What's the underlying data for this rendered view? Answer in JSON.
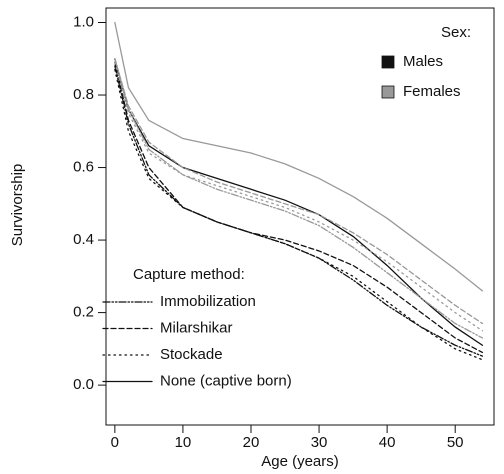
{
  "chart_data": {
    "type": "line",
    "xlabel": "Age (years)",
    "ylabel": "Survivorship",
    "x": [
      0,
      2,
      5,
      10,
      15,
      20,
      25,
      30,
      35,
      40,
      45,
      50,
      54
    ],
    "xlim": [
      -1.3,
      55.7
    ],
    "ylim": [
      -0.11,
      1.04
    ],
    "xticks": [
      0,
      10,
      20,
      30,
      40,
      50
    ],
    "yticks": [
      {
        "value": 0,
        "label": "0.0"
      },
      {
        "value": 0.2,
        "label": "0.2"
      },
      {
        "value": 0.4,
        "label": "0.4"
      },
      {
        "value": 0.6,
        "label": "0.6"
      },
      {
        "value": 0.8,
        "label": "0.8"
      },
      {
        "value": 1,
        "label": "1.0"
      }
    ],
    "sex_legend": {
      "title": "Sex:",
      "items": [
        {
          "label": "Males",
          "color": "#111111"
        },
        {
          "label": "Females",
          "color": "#999999"
        }
      ]
    },
    "method_legend": {
      "title": "Capture method:",
      "items": [
        {
          "label": "Immobilization",
          "dash": "7 2 1.5 2 1.5 2"
        },
        {
          "label": "Milarshikar",
          "dash": "5 3"
        },
        {
          "label": "Stockade",
          "dash": "1.5 4"
        },
        {
          "label": "None (captive born)",
          "dash": "none"
        }
      ]
    },
    "series": [
      {
        "sex": "Males",
        "method": "Immobilization",
        "values": [
          0.88,
          0.72,
          0.58,
          0.49,
          0.45,
          0.42,
          0.39,
          0.35,
          0.29,
          0.22,
          0.16,
          0.11,
          0.08
        ]
      },
      {
        "sex": "Males",
        "method": "Milarshikar",
        "values": [
          0.89,
          0.73,
          0.6,
          0.49,
          0.45,
          0.42,
          0.4,
          0.37,
          0.33,
          0.27,
          0.2,
          0.13,
          0.09
        ]
      },
      {
        "sex": "Males",
        "method": "Stockade",
        "values": [
          0.87,
          0.7,
          0.57,
          0.49,
          0.45,
          0.42,
          0.39,
          0.35,
          0.3,
          0.23,
          0.16,
          0.1,
          0.07
        ]
      },
      {
        "sex": "Males",
        "method": "None (captive born)",
        "values": [
          0.9,
          0.76,
          0.66,
          0.6,
          0.57,
          0.54,
          0.51,
          0.47,
          0.41,
          0.33,
          0.24,
          0.16,
          0.11
        ]
      },
      {
        "sex": "Females",
        "method": "Immobilization",
        "values": [
          0.9,
          0.76,
          0.65,
          0.58,
          0.54,
          0.51,
          0.48,
          0.44,
          0.38,
          0.31,
          0.24,
          0.17,
          0.13
        ]
      },
      {
        "sex": "Females",
        "method": "Milarshikar",
        "values": [
          0.9,
          0.77,
          0.67,
          0.6,
          0.56,
          0.53,
          0.5,
          0.47,
          0.42,
          0.36,
          0.29,
          0.22,
          0.17
        ]
      },
      {
        "sex": "Females",
        "method": "Stockade",
        "values": [
          0.89,
          0.75,
          0.64,
          0.58,
          0.55,
          0.52,
          0.49,
          0.45,
          0.4,
          0.34,
          0.27,
          0.2,
          0.15
        ]
      },
      {
        "sex": "Females",
        "method": "None (captive born)",
        "values": [
          1.0,
          0.82,
          0.73,
          0.68,
          0.66,
          0.64,
          0.61,
          0.57,
          0.52,
          0.46,
          0.39,
          0.32,
          0.26
        ]
      }
    ]
  }
}
